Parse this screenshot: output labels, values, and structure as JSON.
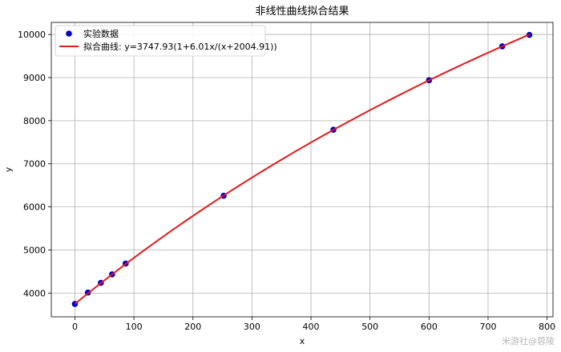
{
  "chart_data": {
    "type": "scatter",
    "title": "非线性曲线拟合结果",
    "xlabel": "x",
    "ylabel": "y",
    "xlim": [
      -40,
      810
    ],
    "ylim": [
      3450,
      10280
    ],
    "x_ticks": [
      0,
      100,
      200,
      300,
      400,
      500,
      600,
      700,
      800
    ],
    "y_ticks": [
      4000,
      5000,
      6000,
      7000,
      8000,
      9000,
      10000
    ],
    "grid": true,
    "legend_position": "top-left",
    "series": [
      {
        "name": "实验数据",
        "kind": "scatter",
        "color": "#0000cc",
        "x": [
          0,
          22,
          44,
          63,
          86,
          252,
          438,
          600,
          724,
          770
        ],
        "y": [
          3748,
          4013,
          4237,
          4435,
          4685,
          6258,
          7790,
          8937,
          9725,
          9990
        ]
      },
      {
        "name": "拟合曲线: y=3747.93(1+6.01x/(x+2004.91))",
        "kind": "line",
        "color": "#e31a1c",
        "a": 3747.93,
        "b": 6.01,
        "c": 2004.91,
        "x_range": [
          0,
          770
        ]
      }
    ]
  },
  "watermark": "米游社@蓉陵"
}
